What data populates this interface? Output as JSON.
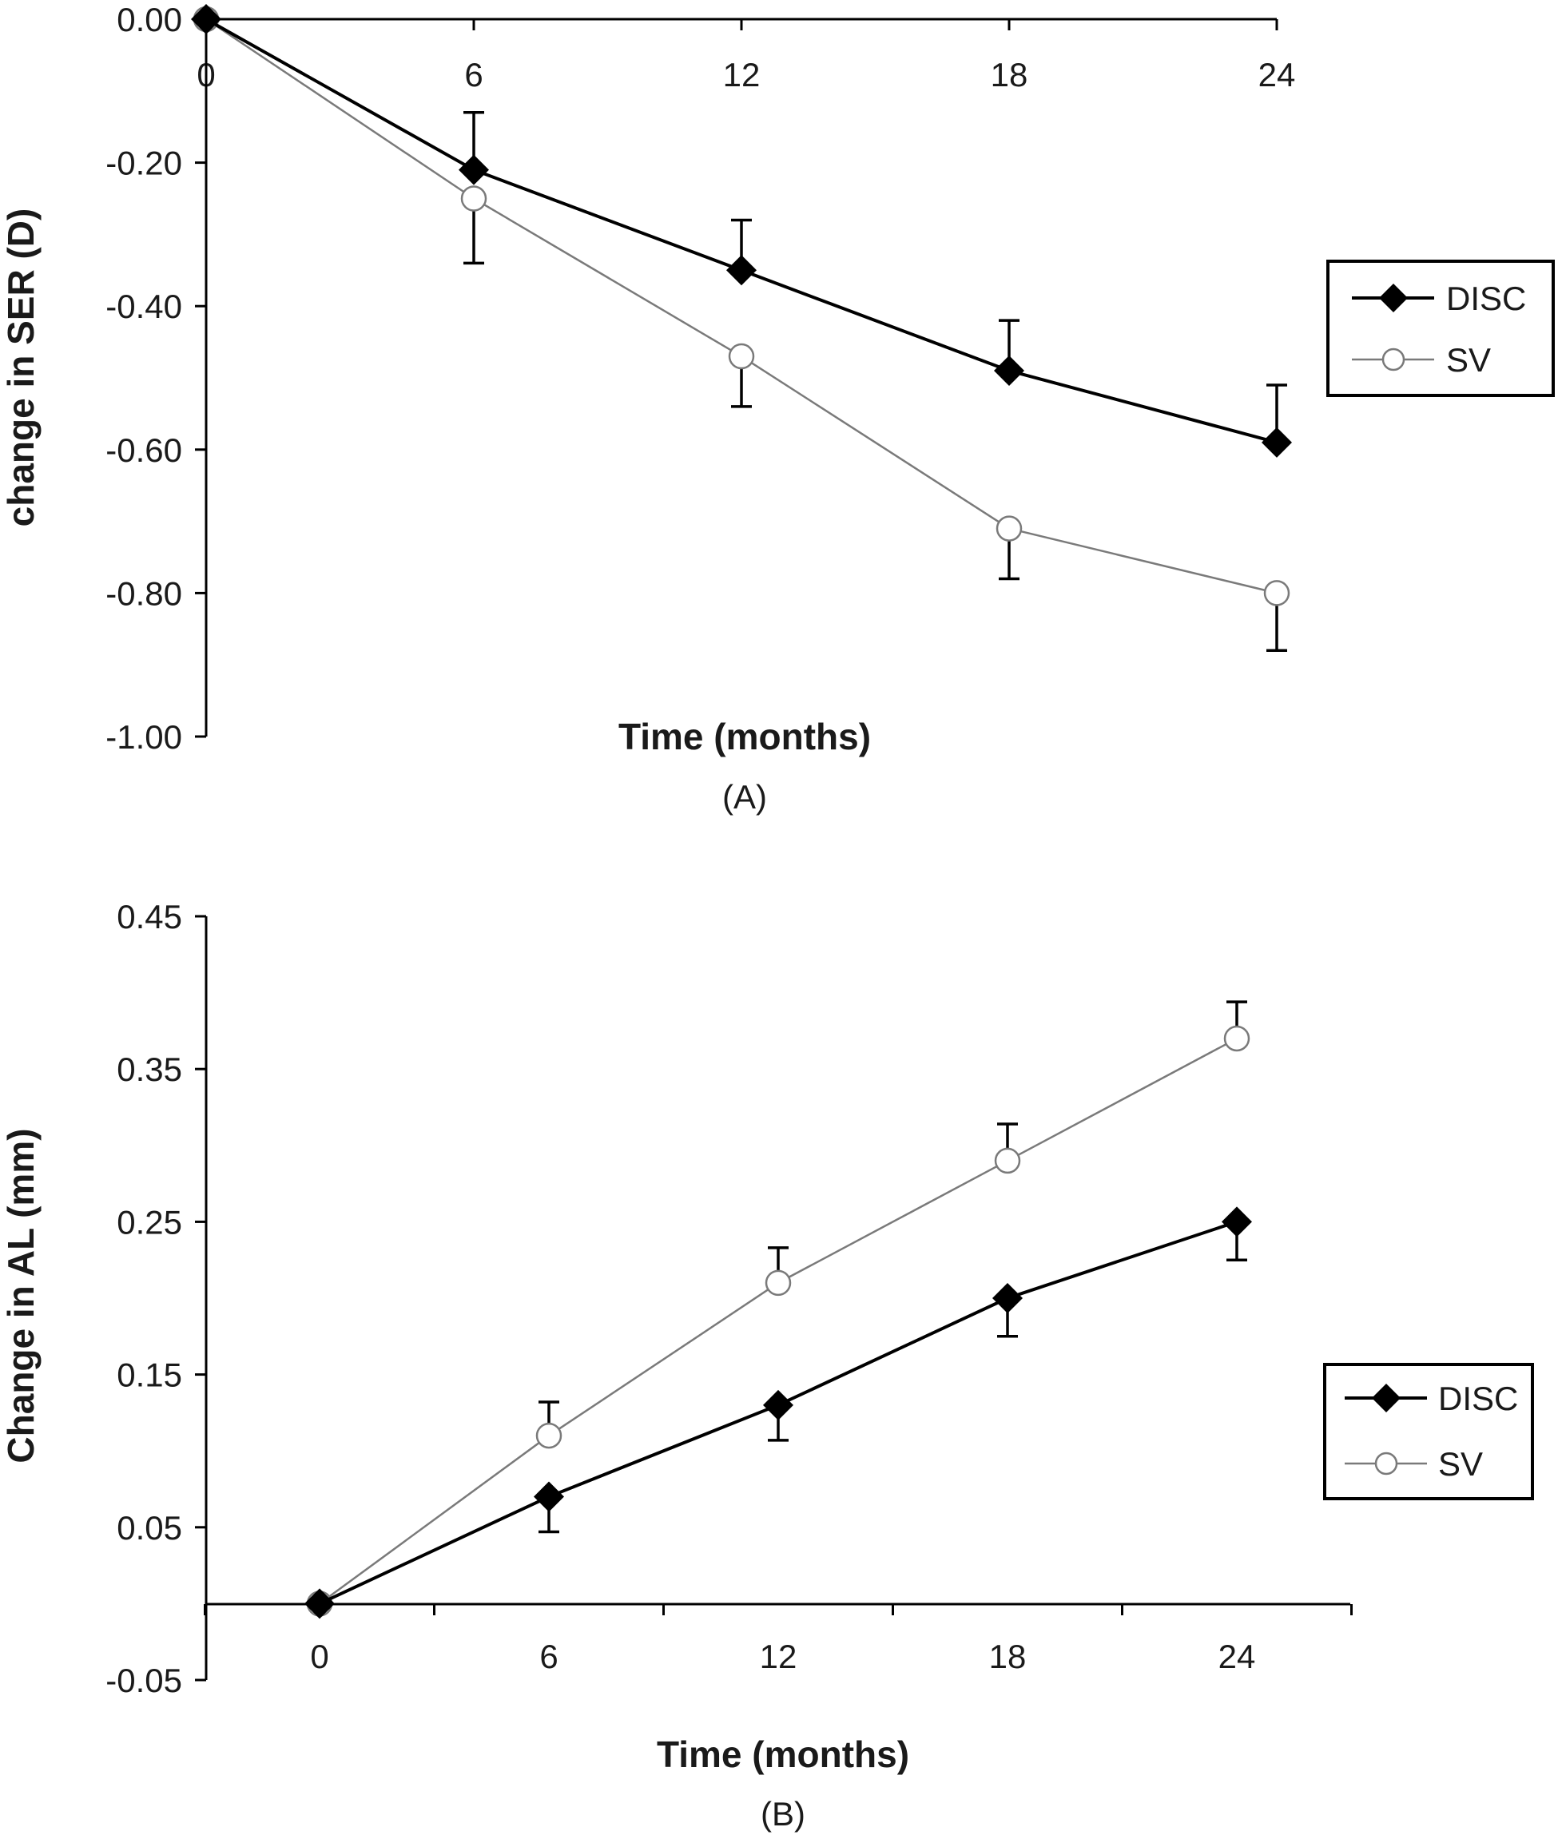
{
  "chart_data": [
    {
      "type": "line",
      "panel_label": "(A)",
      "xlabel": "Time (months)",
      "ylabel": "change in SER (D)",
      "x": [
        0,
        6,
        12,
        18,
        24
      ],
      "x_tick_labels": [
        "0",
        "6",
        "12",
        "18",
        "24"
      ],
      "y_tick_labels": [
        "0.00",
        "-0.20",
        "-0.40",
        "-0.60",
        "-0.80",
        "-1.00"
      ],
      "y_ticks": [
        0,
        -0.2,
        -0.4,
        -0.6,
        -0.8,
        -1.0
      ],
      "ylim": [
        -1.0,
        0.0
      ],
      "xlim": [
        0,
        24
      ],
      "x_axis_position": "top",
      "error_bars": "one-sided",
      "legend_position": "right",
      "series": [
        {
          "name": "DISC",
          "marker": "filled-diamond",
          "color": "#000000",
          "values": [
            0.0,
            -0.21,
            -0.35,
            -0.49,
            -0.59
          ],
          "errors": [
            0.0,
            0.08,
            0.07,
            0.07,
            0.08
          ],
          "error_direction": "up"
        },
        {
          "name": "SV",
          "marker": "open-circle",
          "color": "#7a7a7a",
          "values": [
            0.0,
            -0.25,
            -0.47,
            -0.71,
            -0.8
          ],
          "errors": [
            0.0,
            0.09,
            0.07,
            0.07,
            0.08
          ],
          "error_direction": "down"
        }
      ]
    },
    {
      "type": "line",
      "panel_label": "(B)",
      "xlabel": "Time (months)",
      "ylabel": "Change in AL (mm)",
      "x": [
        0,
        6,
        12,
        18,
        24
      ],
      "x_tick_labels": [
        "0",
        "6",
        "12",
        "18",
        "24"
      ],
      "y_tick_labels": [
        "0.45",
        "0.35",
        "0.25",
        "0.15",
        "0.05",
        "-0.05"
      ],
      "y_ticks": [
        0.45,
        0.35,
        0.25,
        0.15,
        0.05,
        -0.05
      ],
      "ylim": [
        -0.05,
        0.45
      ],
      "xlim": [
        -3,
        27
      ],
      "x_axis_position": "y=0",
      "error_bars": "one-sided",
      "legend_position": "right",
      "series": [
        {
          "name": "DISC",
          "marker": "filled-diamond",
          "color": "#000000",
          "values": [
            0.0,
            0.07,
            0.13,
            0.2,
            0.25
          ],
          "errors": [
            0.0,
            0.023,
            0.023,
            0.025,
            0.025
          ],
          "error_direction": "down"
        },
        {
          "name": "SV",
          "marker": "open-circle",
          "color": "#7a7a7a",
          "values": [
            0.0,
            0.11,
            0.21,
            0.29,
            0.37
          ],
          "errors": [
            0.0,
            0.022,
            0.023,
            0.024,
            0.024
          ],
          "error_direction": "up"
        }
      ]
    }
  ]
}
